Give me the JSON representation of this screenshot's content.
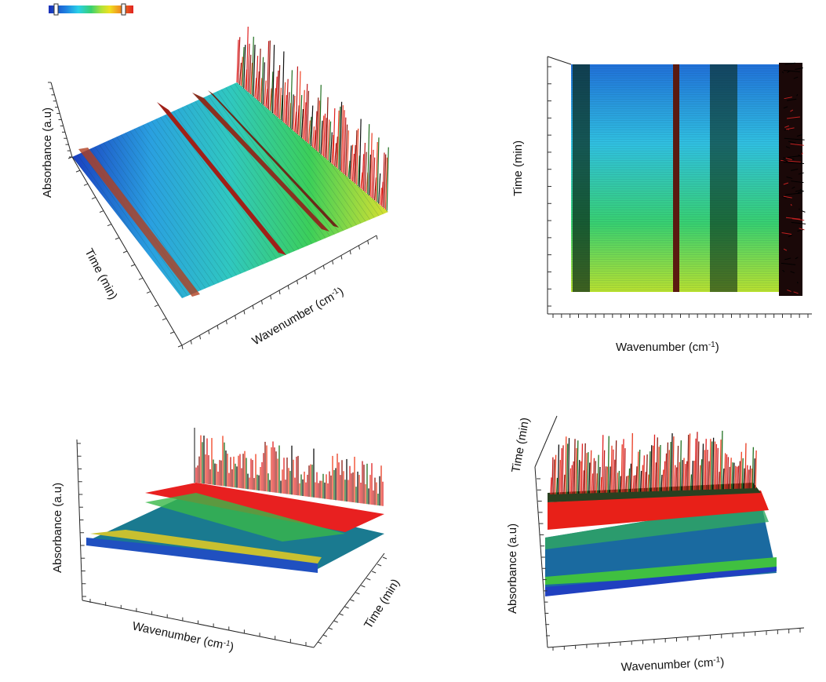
{
  "colorbar": {
    "stops": [
      "#1a2fb8",
      "#1e7fe0",
      "#2ad0e8",
      "#38d070",
      "#aee23a",
      "#f0e020",
      "#f08a20",
      "#e02020"
    ]
  },
  "chart_data": [
    {
      "type": "surface3d",
      "view": "oblique",
      "xlabel": "Wavenumber (cm",
      "xlabel_sup": "-1",
      "xlabel_end": ")",
      "ylabel": "Time (min)",
      "zlabel": "Absorbance (a.u)"
    },
    {
      "type": "surface3d",
      "view": "top",
      "xlabel": "Wavenumber (cm",
      "xlabel_sup": "-1",
      "xlabel_end": ")",
      "ylabel": "Time (min)"
    },
    {
      "type": "surface3d",
      "view": "front-oblique",
      "xlabel": "Wavenumber (cm",
      "xlabel_sup": "-1",
      "xlabel_end": ")",
      "ylabel": "Time (min)",
      "zlabel": "Absorbance (a.u)"
    },
    {
      "type": "surface3d",
      "view": "front",
      "xlabel": "Wavenumber (cm",
      "xlabel_sup": "-1",
      "xlabel_end": ")",
      "ylabel": "Time (min)",
      "zlabel": "Absorbance (a.u)"
    }
  ]
}
